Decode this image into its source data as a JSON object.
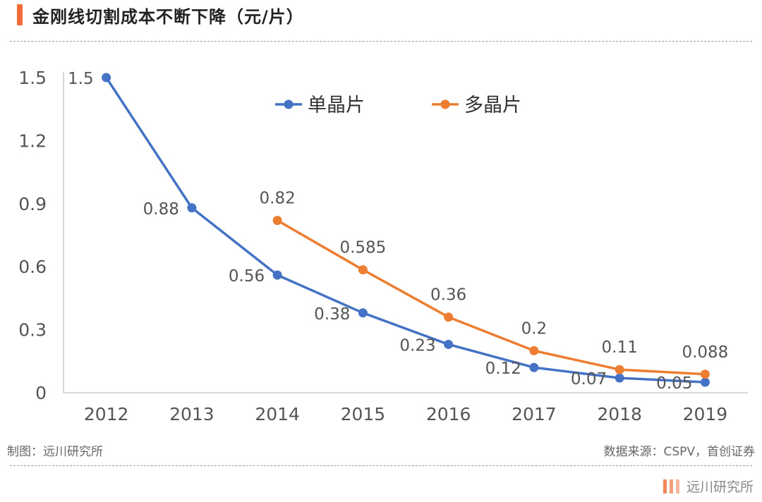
{
  "header": {
    "title": "金刚线切割成本不断下降（元/片）"
  },
  "chart_data": {
    "type": "line",
    "title": "金刚线切割成本不断下降（元/片）",
    "xlabel": "",
    "ylabel": "",
    "categories": [
      "2012",
      "2013",
      "2014",
      "2015",
      "2016",
      "2017",
      "2018",
      "2019"
    ],
    "ylim": [
      0,
      1.5
    ],
    "yticks": [
      "0",
      "0.3",
      "0.6",
      "0.9",
      "1.2",
      "1.5"
    ],
    "legend_position": "top-center",
    "grid": false,
    "series": [
      {
        "name": "单晶片",
        "color": "#4472c4",
        "values": [
          1.5,
          0.88,
          0.56,
          0.38,
          0.23,
          0.12,
          0.07,
          0.05
        ],
        "labels": [
          "1.5",
          "0.88",
          "0.56",
          "0.38",
          "0.23",
          "0.12",
          "0.07",
          "0.05"
        ]
      },
      {
        "name": "多晶片",
        "color": "#ed7d31",
        "values": [
          null,
          null,
          0.82,
          0.585,
          0.36,
          0.2,
          0.11,
          0.088
        ],
        "labels": [
          null,
          null,
          "0.82",
          "0.585",
          "0.36",
          "0.2",
          "0.11",
          "0.088"
        ]
      }
    ]
  },
  "footer": {
    "producer": "制图：远川研究所",
    "source": "数据来源：CSPV，首创证券"
  },
  "brand": {
    "name": "远川研究所"
  }
}
